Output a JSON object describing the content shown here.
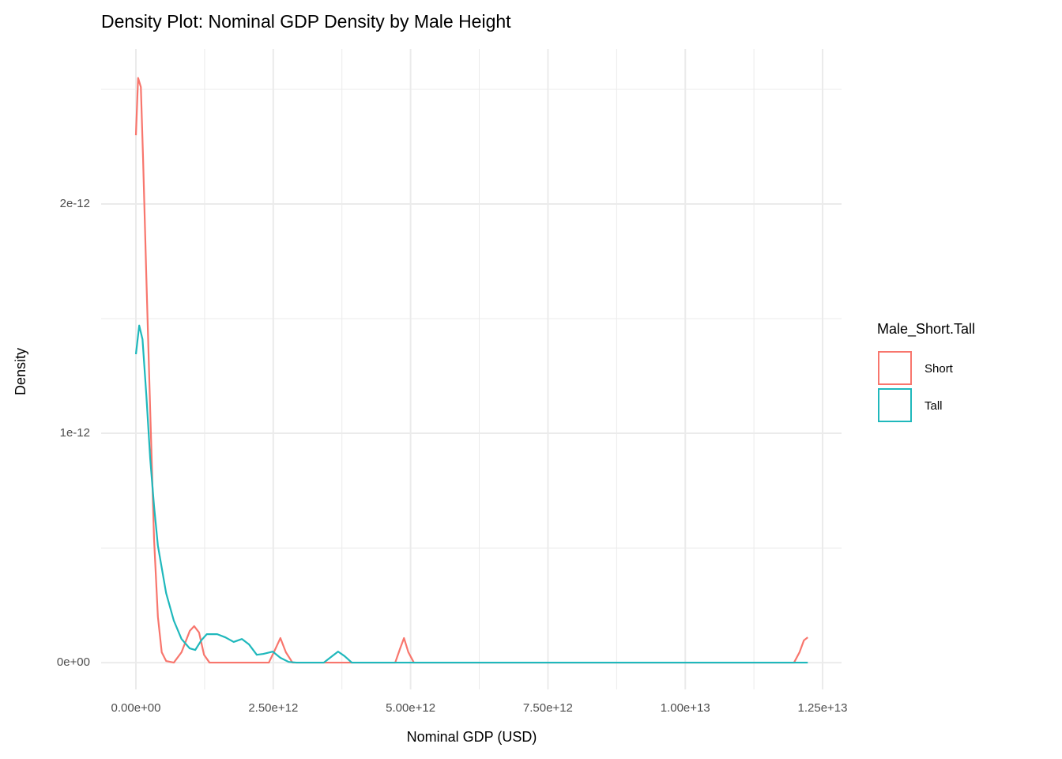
{
  "chart_data": {
    "type": "density",
    "title": "Density Plot: Nominal GDP Density by Male Height",
    "x_label": "Nominal GDP (USD)",
    "y_label": "Density",
    "legend_title": "Male_Short.Tall",
    "legend_position": "right",
    "grid": true,
    "xlim": [
      -633000000000.0,
      12845000000000.0
    ],
    "ylim": [
      -1.17e-13,
      2.676e-12
    ],
    "xticks": [
      {
        "value": 0,
        "label": "0.00e+00"
      },
      {
        "value": 2500000000000.0,
        "label": "2.50e+12"
      },
      {
        "value": 5000000000000.0,
        "label": "5.00e+12"
      },
      {
        "value": 7500000000000.0,
        "label": "7.50e+12"
      },
      {
        "value": 10000000000000.0,
        "label": "1.00e+13"
      },
      {
        "value": 12500000000000.0,
        "label": "1.25e+13"
      }
    ],
    "yticks": [
      {
        "value": 0,
        "label": "0e+00"
      },
      {
        "value": 1e-12,
        "label": "1e-12"
      },
      {
        "value": 2e-12,
        "label": "2e-12"
      }
    ],
    "series": [
      {
        "name": "Short",
        "color": "#F8766D",
        "x": [
          0,
          40000000000.0,
          90000000000.0,
          130000000000.0,
          190000000000.0,
          260000000000.0,
          330000000000.0,
          400000000000.0,
          470000000000.0,
          550000000000.0,
          690000000000.0,
          830000000000.0,
          980000000000.0,
          1060000000000.0,
          1150000000000.0,
          1240000000000.0,
          1340000000000.0,
          2420000000000.0,
          2530000000000.0,
          2630000000000.0,
          2730000000000.0,
          2850000000000.0,
          4720000000000.0,
          4810000000000.0,
          4880000000000.0,
          4960000000000.0,
          5060000000000.0,
          11980000000000.0,
          12080000000000.0,
          12160000000000.0,
          12230000000000.0
        ],
        "values": [
          2.3e-12,
          2.55e-12,
          2.51e-12,
          2.2e-12,
          1.68e-12,
          1.1e-12,
          5.4e-13,
          2e-13,
          4.5e-14,
          7e-15,
          0,
          4.5e-14,
          1.38e-13,
          1.59e-13,
          1.31e-13,
          3.4e-14,
          0,
          0,
          5.5e-14,
          1.07e-13,
          4.5e-14,
          0,
          0,
          6.2e-14,
          1.07e-13,
          4.5e-14,
          0,
          0,
          4.5e-14,
          9.7e-14,
          1.1e-13
        ]
      },
      {
        "name": "Tall",
        "color": "#1FB8BC",
        "x": [
          0,
          60000000000.0,
          120000000000.0,
          190000000000.0,
          260000000000.0,
          330000000000.0,
          400000000000.0,
          550000000000.0,
          690000000000.0,
          830000000000.0,
          980000000000.0,
          1080000000000.0,
          1190000000000.0,
          1290000000000.0,
          1480000000000.0,
          1630000000000.0,
          1780000000000.0,
          1930000000000.0,
          2060000000000.0,
          2200000000000.0,
          2320000000000.0,
          2490000000000.0,
          2630000000000.0,
          2780000000000.0,
          2920000000000.0,
          3420000000000.0,
          3570000000000.0,
          3680000000000.0,
          3800000000000.0,
          3930000000000.0,
          12230000000000.0
        ],
        "values": [
          1.345e-12,
          1.47e-12,
          1.41e-12,
          1.165e-12,
          8.9e-13,
          6.83e-13,
          5.1e-13,
          3.03e-13,
          1.83e-13,
          1.03e-13,
          6.2e-14,
          5.5e-14,
          9.7e-14,
          1.24e-13,
          1.24e-13,
          1.1e-13,
          9e-14,
          1.03e-13,
          7.9e-14,
          3.4e-14,
          3.8e-14,
          4.8e-14,
          2.1e-14,
          3e-15,
          0,
          0,
          2.8e-14,
          4.8e-14,
          2.8e-14,
          0,
          0
        ]
      }
    ]
  }
}
